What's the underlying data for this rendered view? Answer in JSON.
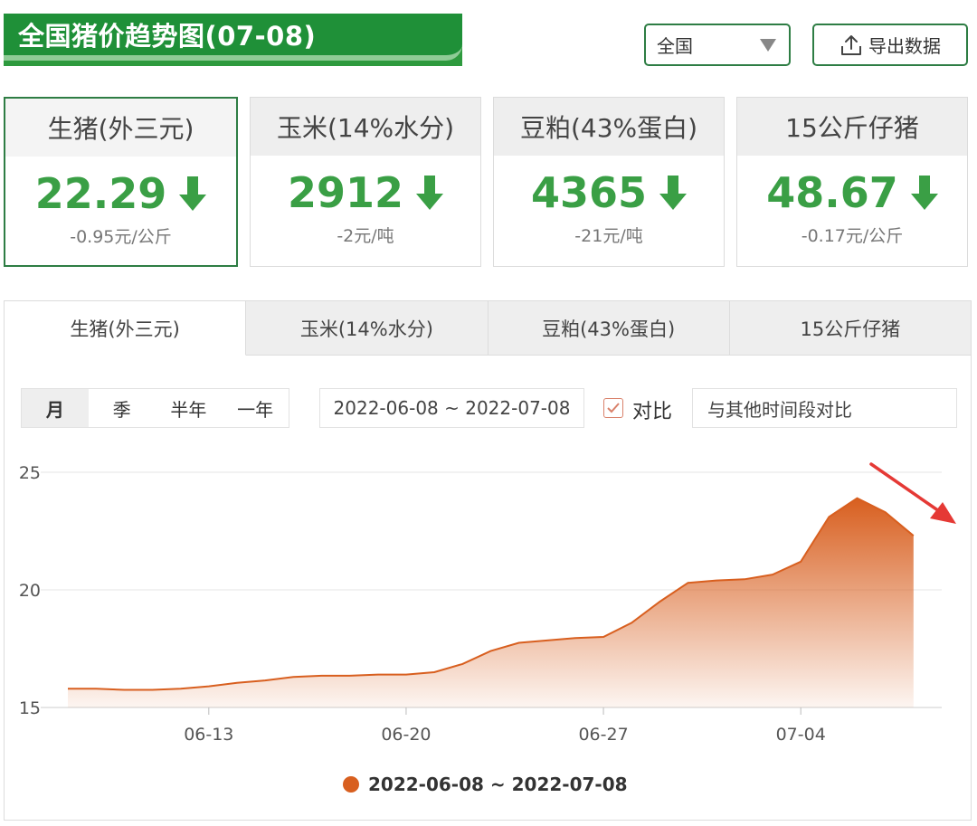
{
  "header": {
    "title": "全国猪价趋势图(07-08)",
    "region": "全国",
    "export_label": "导出数据"
  },
  "cards": [
    {
      "name": "生猪(外三元)",
      "value": "22.29",
      "change": "-0.95元/公斤",
      "direction": "down",
      "active": true
    },
    {
      "name": "玉米(14%水分)",
      "value": "2912",
      "change": "-2元/吨",
      "direction": "down",
      "active": false
    },
    {
      "name": "豆粕(43%蛋白)",
      "value": "4365",
      "change": "-21元/吨",
      "direction": "down",
      "active": false
    },
    {
      "name": "15公斤仔猪",
      "value": "48.67",
      "change": "-0.17元/公斤",
      "direction": "down",
      "active": false
    }
  ],
  "tabs": [
    "生猪(外三元)",
    "玉米(14%水分)",
    "豆粕(43%蛋白)",
    "15公斤仔猪"
  ],
  "controls": {
    "periods": [
      "月",
      "季",
      "半年",
      "一年"
    ],
    "active_period": "月",
    "date_range": "2022-06-08 ~ 2022-07-08",
    "compare_label": "对比",
    "compare_checked": true,
    "compare_placeholder": "与其他时间段对比"
  },
  "colors": {
    "accent_green": "#2e7d44",
    "value_green": "#3a9f45",
    "series_orange": "#d85f1f",
    "arrow_red": "#e53935"
  },
  "chart_data": {
    "type": "area",
    "x_ticks": [
      "06-13",
      "06-20",
      "06-27",
      "07-04"
    ],
    "y_ticks": [
      15,
      20,
      25
    ],
    "ylim": [
      15,
      25
    ],
    "xlim": [
      "2022-06-08",
      "2022-07-09"
    ],
    "series": [
      {
        "name": "2022-06-08 ~ 2022-07-08",
        "x": [
          "2022-06-08",
          "2022-06-09",
          "2022-06-10",
          "2022-06-11",
          "2022-06-12",
          "2022-06-13",
          "2022-06-14",
          "2022-06-15",
          "2022-06-16",
          "2022-06-17",
          "2022-06-18",
          "2022-06-19",
          "2022-06-20",
          "2022-06-21",
          "2022-06-22",
          "2022-06-23",
          "2022-06-24",
          "2022-06-25",
          "2022-06-26",
          "2022-06-27",
          "2022-06-28",
          "2022-06-29",
          "2022-06-30",
          "2022-07-01",
          "2022-07-02",
          "2022-07-03",
          "2022-07-04",
          "2022-07-05",
          "2022-07-06",
          "2022-07-07",
          "2022-07-08"
        ],
        "values": [
          15.8,
          15.8,
          15.75,
          15.75,
          15.8,
          15.9,
          16.05,
          16.15,
          16.3,
          16.35,
          16.35,
          16.4,
          16.4,
          16.5,
          16.85,
          17.4,
          17.75,
          17.85,
          17.95,
          18.0,
          18.6,
          19.5,
          20.3,
          20.4,
          20.45,
          20.65,
          21.2,
          23.1,
          23.9,
          23.3,
          22.3
        ]
      }
    ],
    "annotation": "red arrow pointing down-right at latest value",
    "legend_position": "bottom-center"
  }
}
